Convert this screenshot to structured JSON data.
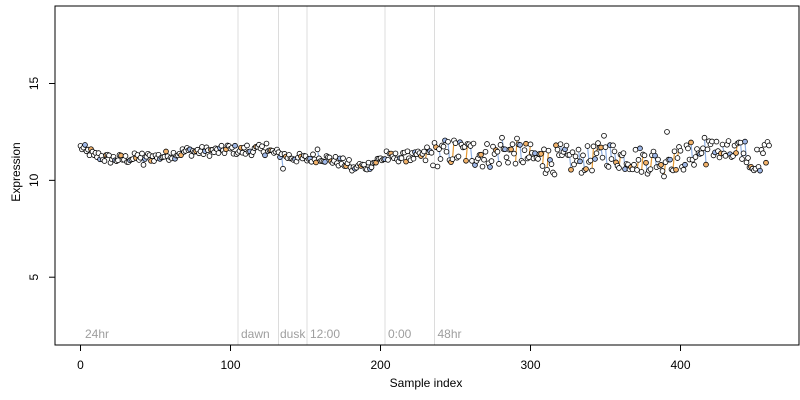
{
  "chart_data": {
    "type": "scatter",
    "xlabel": "Sample index",
    "ylabel": "Expression",
    "xlim": [
      -17,
      479
    ],
    "ylim": [
      1.5,
      19.0
    ],
    "x_ticks": [
      0,
      100,
      200,
      300,
      400
    ],
    "y_ticks": [
      5,
      10,
      15
    ],
    "grid": false,
    "legend": "none",
    "colors": {
      "point_edge": "#000000",
      "point_fill_default": "#ffffff",
      "point_fill_orange": "#f3b36b",
      "point_fill_blue": "#9fb8e8",
      "segment_orange": "#e69a33",
      "segment_blue": "#8fb0e3",
      "vline": "#dcdcdc",
      "region_text": "#9e9e9e"
    },
    "vertical_lines": [
      105,
      132,
      151,
      203,
      236
    ],
    "region_labels": [
      {
        "x": 3,
        "text": "24hr"
      },
      {
        "x": 107,
        "text": "dawn"
      },
      {
        "x": 133,
        "text": "dusk"
      },
      {
        "x": 153,
        "text": "12:00"
      },
      {
        "x": 205,
        "text": "0:00"
      },
      {
        "x": 238,
        "text": "48hr"
      }
    ],
    "series": [
      {
        "values_anchor": [
          [
            0,
            11.7
          ],
          [
            10,
            11.3
          ],
          [
            20,
            11.1
          ],
          [
            30,
            11.1
          ],
          [
            40,
            11.2
          ],
          [
            50,
            11.2
          ],
          [
            60,
            11.3
          ],
          [
            70,
            11.5
          ],
          [
            80,
            11.5
          ],
          [
            90,
            11.5
          ],
          [
            100,
            11.6
          ],
          [
            110,
            11.5
          ],
          [
            120,
            11.6
          ],
          [
            130,
            11.4
          ],
          [
            140,
            11.2
          ],
          [
            150,
            11.1
          ],
          [
            160,
            11.2
          ],
          [
            170,
            11.0
          ],
          [
            180,
            10.8
          ],
          [
            190,
            10.7
          ],
          [
            200,
            11.1
          ],
          [
            210,
            11.2
          ],
          [
            220,
            11.2
          ],
          [
            230,
            11.3
          ],
          [
            240,
            11.4
          ],
          [
            250,
            11.5
          ],
          [
            260,
            11.4
          ],
          [
            270,
            11.3
          ],
          [
            280,
            11.4
          ],
          [
            290,
            11.5
          ],
          [
            300,
            11.2
          ],
          [
            310,
            11.0
          ],
          [
            320,
            11.2
          ],
          [
            330,
            11.0
          ],
          [
            340,
            11.1
          ],
          [
            350,
            11.4
          ],
          [
            360,
            11.2
          ],
          [
            370,
            11.1
          ],
          [
            380,
            11.0
          ],
          [
            390,
            11.2
          ],
          [
            400,
            11.1
          ],
          [
            410,
            11.4
          ],
          [
            420,
            11.5
          ],
          [
            430,
            11.4
          ],
          [
            440,
            11.3
          ],
          [
            450,
            11.1
          ],
          [
            460,
            11.4
          ]
        ],
        "count": 460,
        "noise": [
          0.25,
          0.7
        ],
        "highlights": [
          [
            1,
            11.6
          ],
          [
            4,
            11.5
          ],
          [
            9,
            11.3
          ],
          [
            16,
            11.0
          ],
          [
            35,
            11.1
          ],
          [
            42,
            10.8
          ],
          [
            98,
            11.8
          ],
          [
            111,
            11.8
          ],
          [
            124,
            11.9
          ],
          [
            133,
            11.2
          ],
          [
            135,
            10.6
          ],
          [
            158,
            11.6
          ],
          [
            181,
            10.5
          ],
          [
            183,
            10.6
          ],
          [
            204,
            11.5
          ],
          [
            218,
            11.5
          ],
          [
            241,
            11.8
          ],
          [
            255,
            11.7
          ],
          [
            262,
            11.9
          ],
          [
            281,
            12.2
          ],
          [
            287,
            11.6
          ],
          [
            309,
            11.6
          ],
          [
            316,
            10.3
          ],
          [
            321,
            11.3
          ],
          [
            344,
            11.4
          ],
          [
            349,
            12.3
          ],
          [
            354,
            11.1
          ],
          [
            387,
            10.8
          ],
          [
            389,
            10.2
          ],
          [
            391,
            12.5
          ],
          [
            396,
            11.5
          ],
          [
            416,
            12.2
          ],
          [
            418,
            11.6
          ],
          [
            424,
            12.0
          ],
          [
            441,
            11.1
          ],
          [
            443,
            12.0
          ],
          [
            447,
            10.7
          ],
          [
            448,
            10.6
          ],
          [
            455,
            11.4
          ],
          [
            459,
            11.8
          ]
        ]
      }
    ]
  }
}
